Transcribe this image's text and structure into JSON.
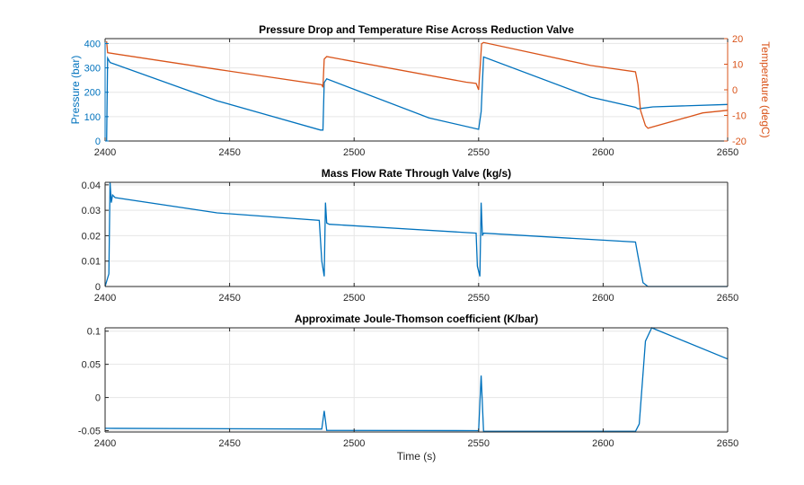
{
  "colors": {
    "blue": "#0072BD",
    "orange": "#D95319",
    "grid": "#e6e6e6",
    "axis": "#262626"
  },
  "chart_data": [
    {
      "type": "line",
      "title": "Pressure Drop and Temperature Rise Across Reduction Valve",
      "xlabel": "",
      "xlim": [
        2400,
        2650
      ],
      "xticks": [
        2400,
        2450,
        2500,
        2550,
        2600,
        2650
      ],
      "ylabel": "Pressure (bar)",
      "ylim": [
        0,
        420
      ],
      "yticks": [
        0,
        100,
        200,
        300,
        400
      ],
      "y2label": "Temperature (degC)",
      "y2lim": [
        -20,
        20
      ],
      "y2ticks": [
        -20,
        -10,
        0,
        10,
        20
      ],
      "series": [
        {
          "name": "Pressure",
          "axis": "left",
          "color": "blue",
          "points": [
            [
              2400.6,
              0
            ],
            [
              2401.0,
              340
            ],
            [
              2402,
              322
            ],
            [
              2445,
              165
            ],
            [
              2486.5,
              45
            ],
            [
              2487.5,
              45
            ],
            [
              2488,
              240
            ],
            [
              2489,
              255
            ],
            [
              2530,
              95
            ],
            [
              2550,
              48
            ],
            [
              2551,
              120
            ],
            [
              2552,
              345
            ],
            [
              2595,
              180
            ],
            [
              2613,
              138
            ],
            [
              2614,
              132
            ],
            [
              2620,
              140
            ],
            [
              2650,
              150
            ]
          ]
        },
        {
          "name": "Temperature",
          "axis": "right",
          "color": "orange",
          "points": [
            [
              2400.6,
              19
            ],
            [
              2401,
              14.5
            ],
            [
              2445,
              8
            ],
            [
              2487,
              2
            ],
            [
              2487.5,
              1
            ],
            [
              2488,
              12
            ],
            [
              2489,
              13
            ],
            [
              2545,
              3
            ],
            [
              2549,
              2.5
            ],
            [
              2550,
              0
            ],
            [
              2550.7,
              10
            ],
            [
              2551.2,
              18
            ],
            [
              2552,
              18.5
            ],
            [
              2595,
              9.5
            ],
            [
              2613,
              7
            ],
            [
              2614,
              2
            ],
            [
              2615,
              -8
            ],
            [
              2617,
              -14
            ],
            [
              2618,
              -15
            ],
            [
              2640,
              -9
            ],
            [
              2650,
              -8
            ]
          ]
        }
      ]
    },
    {
      "type": "line",
      "title": "Mass Flow Rate Through Valve (kg/s)",
      "xlabel": "",
      "xlim": [
        2400,
        2650
      ],
      "xticks": [
        2400,
        2450,
        2500,
        2550,
        2600,
        2650
      ],
      "ylim": [
        0,
        0.041
      ],
      "yticks": [
        0,
        0.01,
        0.02,
        0.03,
        0.04
      ],
      "series": [
        {
          "name": "Mass flow",
          "axis": "left",
          "color": "blue",
          "points": [
            [
              2400,
              0
            ],
            [
              2401.5,
              0.005
            ],
            [
              2402,
              0.041
            ],
            [
              2402.5,
              0.033
            ],
            [
              2403,
              0.036
            ],
            [
              2404,
              0.035
            ],
            [
              2445,
              0.029
            ],
            [
              2486,
              0.026
            ],
            [
              2487,
              0.01
            ],
            [
              2488,
              0.004
            ],
            [
              2488.5,
              0.033
            ],
            [
              2489,
              0.025
            ],
            [
              2490,
              0.0245
            ],
            [
              2549,
              0.021
            ],
            [
              2549.5,
              0.008
            ],
            [
              2550.5,
              0.004
            ],
            [
              2551,
              0.033
            ],
            [
              2551.5,
              0.02
            ],
            [
              2552,
              0.021
            ],
            [
              2613,
              0.0175
            ],
            [
              2614,
              0.012
            ],
            [
              2616,
              0.0015
            ],
            [
              2618,
              0
            ],
            [
              2650,
              0
            ]
          ]
        }
      ]
    },
    {
      "type": "line",
      "title": "Approximate Joule-Thomson coefficient (K/bar)",
      "xlabel": "Time (s)",
      "xlim": [
        2400,
        2650
      ],
      "xticks": [
        2400,
        2450,
        2500,
        2550,
        2600,
        2650
      ],
      "ylim": [
        -0.052,
        0.105
      ],
      "yticks": [
        -0.05,
        0,
        0.05,
        0.1
      ],
      "series": [
        {
          "name": "JT coefficient",
          "axis": "left",
          "color": "blue",
          "points": [
            [
              2400,
              -0.0465
            ],
            [
              2487,
              -0.0475
            ],
            [
              2488,
              -0.02
            ],
            [
              2489,
              -0.0495
            ],
            [
              2550,
              -0.05
            ],
            [
              2551,
              0.033
            ],
            [
              2552,
              -0.051
            ],
            [
              2613,
              -0.051
            ],
            [
              2614.5,
              -0.04
            ],
            [
              2617,
              0.085
            ],
            [
              2619.5,
              0.105
            ],
            [
              2650,
              0.058
            ]
          ]
        }
      ]
    }
  ]
}
